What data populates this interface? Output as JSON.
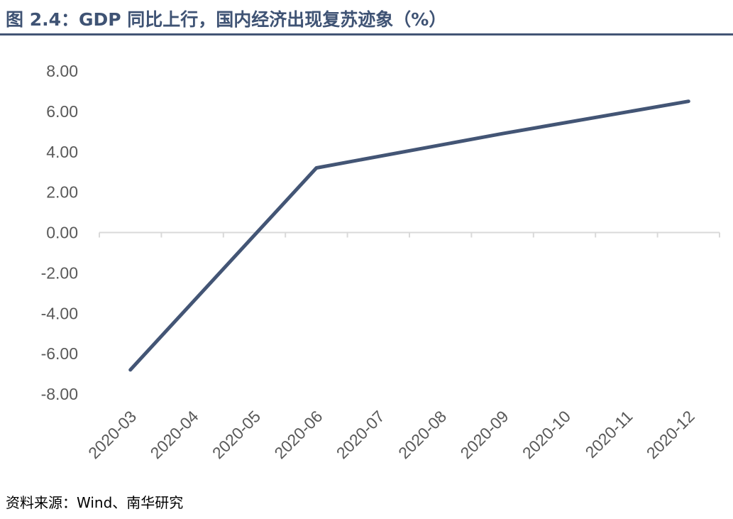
{
  "title": "图 2.4：GDP 同比上行，国内经济出现复苏迹象（%）",
  "source": "资料来源：Wind、南华研究",
  "chart_data": {
    "type": "line",
    "categories": [
      "2020-03",
      "2020-04",
      "2020-05",
      "2020-06",
      "2020-07",
      "2020-08",
      "2020-09",
      "2020-10",
      "2020-11",
      "2020-12"
    ],
    "series": [
      {
        "values": [
          -6.8,
          null,
          null,
          3.2,
          null,
          null,
          4.9,
          null,
          null,
          6.5
        ],
        "color": "#435575"
      }
    ],
    "ylim": [
      -8,
      8
    ],
    "ytick_labels": [
      "8.00",
      "6.00",
      "4.00",
      "2.00",
      "0.00",
      "-2.00",
      "-4.00",
      "-6.00",
      "-8.00"
    ],
    "ytick_values": [
      8,
      6,
      4,
      2,
      0,
      -2,
      -4,
      -6,
      -8
    ],
    "xlabel": "",
    "ylabel": "",
    "grid": false,
    "legend": "none",
    "axis_color": "#d9d9d9",
    "tick_label_color": "#595959"
  }
}
